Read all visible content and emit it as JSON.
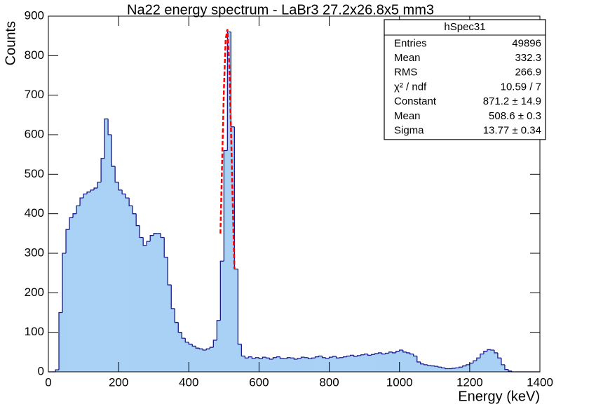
{
  "chart_data": {
    "type": "histogram",
    "title": "Na22 energy spectrum - LaBr3 27.2x26.8x5 mm3",
    "x_label": "Energy (keV)",
    "y_label": "Counts",
    "color": "#a8d1f5",
    "edge_color": "#1a1a8c",
    "bins": [
      0,
      10,
      20,
      30,
      40,
      50,
      60,
      70,
      80,
      90,
      100,
      110,
      120,
      130,
      140,
      150,
      160,
      170,
      180,
      190,
      200,
      210,
      220,
      230,
      240,
      250,
      260,
      270,
      280,
      290,
      300,
      310,
      320,
      330,
      340,
      350,
      360,
      370,
      380,
      390,
      400,
      410,
      420,
      430,
      440,
      450,
      460,
      470,
      480,
      490,
      500,
      510,
      520,
      530,
      540,
      550,
      560,
      570,
      580,
      590,
      600,
      610,
      620,
      630,
      640,
      650,
      660,
      670,
      680,
      690,
      700,
      710,
      720,
      730,
      740,
      750,
      760,
      770,
      780,
      790,
      800,
      810,
      820,
      830,
      840,
      850,
      860,
      870,
      880,
      890,
      900,
      910,
      920,
      930,
      940,
      950,
      960,
      970,
      980,
      990,
      1000,
      1010,
      1020,
      1030,
      1040,
      1050,
      1060,
      1070,
      1080,
      1090,
      1100,
      1110,
      1120,
      1130,
      1140,
      1150,
      1160,
      1170,
      1180,
      1190,
      1200,
      1210,
      1220,
      1230,
      1240,
      1250,
      1260,
      1270,
      1280,
      1290,
      1300,
      1310,
      1320,
      1330,
      1340,
      1350,
      1360,
      1370,
      1380,
      1390,
      1400
    ],
    "values": [
      0,
      0,
      5,
      150,
      300,
      360,
      390,
      400,
      420,
      440,
      450,
      455,
      460,
      465,
      480,
      540,
      640,
      600,
      520,
      480,
      460,
      450,
      440,
      420,
      400,
      370,
      340,
      320,
      330,
      345,
      350,
      350,
      340,
      290,
      220,
      160,
      125,
      100,
      85,
      75,
      70,
      65,
      60,
      58,
      55,
      58,
      62,
      80,
      130,
      280,
      560,
      860,
      620,
      260,
      70,
      40,
      35,
      38,
      34,
      36,
      33,
      37,
      35,
      32,
      36,
      38,
      34,
      33,
      36,
      35,
      32,
      34,
      37,
      36,
      33,
      35,
      38,
      40,
      36,
      34,
      37,
      39,
      35,
      36,
      38,
      40,
      42,
      39,
      41,
      43,
      45,
      42,
      44,
      46,
      48,
      45,
      47,
      50,
      48,
      52,
      55,
      50,
      48,
      45,
      40,
      25,
      20,
      18,
      16,
      15,
      14,
      12,
      10,
      8,
      8,
      9,
      10,
      12,
      15,
      18,
      22,
      28,
      35,
      45,
      52,
      56,
      55,
      48,
      35,
      18,
      6,
      2,
      0,
      0,
      0,
      0,
      0,
      0,
      0,
      0
    ],
    "fit": {
      "color": "#ff0000",
      "x": [
        490,
        495,
        500,
        505,
        510,
        515,
        520,
        525,
        530
      ],
      "values": [
        350,
        535,
        717,
        842,
        867,
        782,
        618,
        429,
        260
      ]
    },
    "xlim": [
      0,
      1400
    ],
    "xticks": [
      0,
      200,
      400,
      600,
      800,
      1000,
      1200,
      1400
    ],
    "ylim": [
      0,
      900
    ],
    "yticks": [
      0,
      100,
      200,
      300,
      400,
      500,
      600,
      700,
      800,
      900
    ],
    "stats_box": {
      "title": "hSpec31",
      "rows": [
        [
          "Entries",
          "49896"
        ],
        [
          "Mean",
          "332.3"
        ],
        [
          "RMS",
          "266.9"
        ],
        [
          "χ² / ndf",
          "10.59 / 7"
        ],
        [
          "Constant",
          "871.2 ± 14.9"
        ],
        [
          "Mean",
          "508.6 ± 0.3"
        ],
        [
          "Sigma",
          "13.77 ± 0.34"
        ]
      ]
    }
  }
}
